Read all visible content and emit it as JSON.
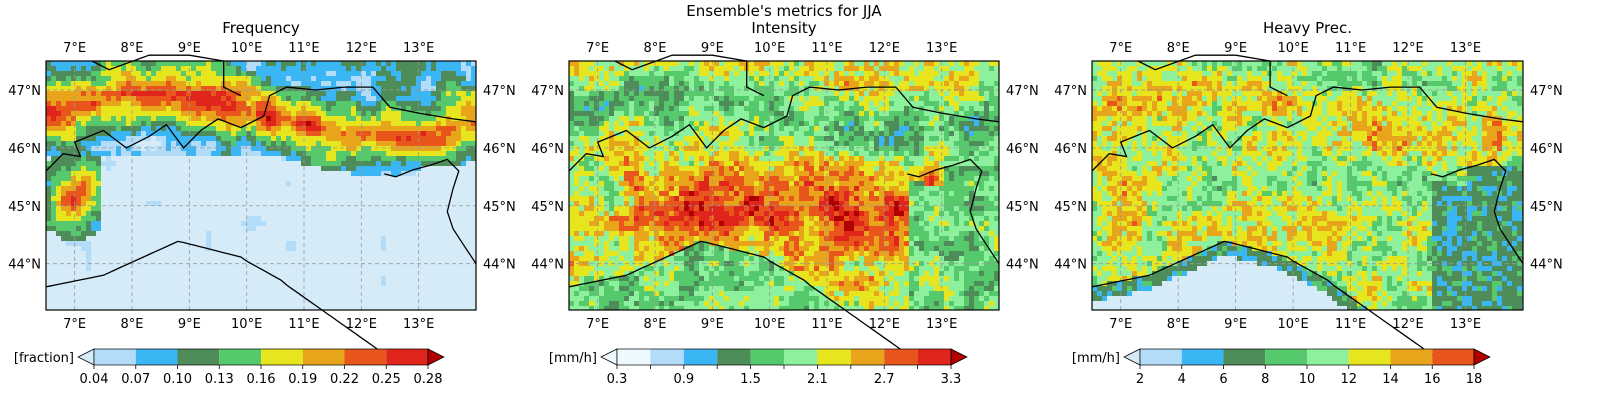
{
  "suptitle": "Ensemble's metrics for JJA",
  "chart_data": [
    {
      "type": "heatmap",
      "title": "Frequency",
      "lon_ticks": [
        "7°E",
        "8°E",
        "9°E",
        "10°E",
        "11°E",
        "12°E",
        "13°E"
      ],
      "lat_ticks": [
        "47°N",
        "46°N",
        "45°N",
        "44°N"
      ],
      "lon_range": [
        6.5,
        14.0
      ],
      "lat_range": [
        43.2,
        47.5
      ],
      "colorbar": {
        "label": "[fraction]",
        "ticks": [
          "0.04",
          "0.07",
          "0.10",
          "0.13",
          "0.16",
          "0.19",
          "0.22",
          "0.25",
          "0.28"
        ],
        "under_color": "#d6ebf8",
        "colors": [
          "#b3dcf8",
          "#3bb6f5",
          "#4e8c5a",
          "#55c96b",
          "#e7e51d",
          "#e8a51c",
          "#e8561c",
          "#e0261c"
        ],
        "over_color": "#b00000"
      },
      "grid": true
    },
    {
      "type": "heatmap",
      "title": "Intensity",
      "lon_ticks": [
        "7°E",
        "8°E",
        "9°E",
        "10°E",
        "11°E",
        "12°E",
        "13°E"
      ],
      "lat_ticks": [
        "47°N",
        "46°N",
        "45°N",
        "44°N"
      ],
      "lon_range": [
        6.5,
        14.0
      ],
      "lat_range": [
        43.2,
        47.5
      ],
      "colorbar": {
        "label": "[mm/h]",
        "ticks": [
          "0.3",
          "",
          "0.9",
          "",
          "1.5",
          "",
          "2.1",
          "",
          "2.7",
          "",
          "3.3"
        ],
        "under_color": "#eef8ff",
        "colors": [
          "#eef8ff",
          "#b3dcf8",
          "#3bb6f5",
          "#4e8c5a",
          "#55c96b",
          "#8cf09c",
          "#e7e51d",
          "#e8a51c",
          "#e8561c",
          "#e0261c"
        ],
        "over_color": "#b00000"
      },
      "grid": true
    },
    {
      "type": "heatmap",
      "title": "Heavy Prec.",
      "lon_ticks": [
        "7°E",
        "8°E",
        "9°E",
        "10°E",
        "11°E",
        "12°E",
        "13°E"
      ],
      "lat_ticks": [
        "47°N",
        "46°N",
        "45°N",
        "44°N"
      ],
      "lon_range": [
        6.5,
        14.0
      ],
      "lat_range": [
        43.2,
        47.5
      ],
      "colorbar": {
        "label": "[mm/h]",
        "ticks": [
          "2",
          "4",
          "6",
          "8",
          "10",
          "12",
          "14",
          "16",
          "18"
        ],
        "under_color": "#d6ebf8",
        "colors": [
          "#b3dcf8",
          "#3bb6f5",
          "#4e8c5a",
          "#55c96b",
          "#8cf09c",
          "#e7e51d",
          "#e8a51c",
          "#e8561c"
        ],
        "over_color": "#b00000"
      },
      "grid": true
    }
  ]
}
